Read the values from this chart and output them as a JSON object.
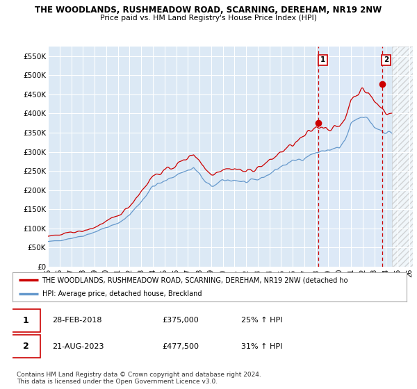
{
  "title1": "THE WOODLANDS, RUSHMEADOW ROAD, SCARNING, DEREHAM, NR19 2NW",
  "title2": "Price paid vs. HM Land Registry's House Price Index (HPI)",
  "ylim": [
    0,
    575000
  ],
  "yticks": [
    0,
    50000,
    100000,
    150000,
    200000,
    250000,
    300000,
    350000,
    400000,
    450000,
    500000,
    550000
  ],
  "ytick_labels": [
    "£0",
    "£50K",
    "£100K",
    "£150K",
    "£200K",
    "£250K",
    "£300K",
    "£350K",
    "£400K",
    "£450K",
    "£500K",
    "£550K"
  ],
  "bg_color": "#dce9f5",
  "bg_color_highlight": "#e8f0fa",
  "grid_color": "white",
  "red_color": "#cc0000",
  "blue_color": "#6699cc",
  "vline_color": "#cc0000",
  "marker1_x": 2018.17,
  "marker2_x": 2023.65,
  "marker1_y": 375000,
  "marker2_y": 477500,
  "hatch_start": 2024.5,
  "xlim_left": 1995.0,
  "xlim_right": 2026.3,
  "transactions": [
    {
      "id": 1,
      "date": "28-FEB-2018",
      "price": "£375,000",
      "hpi": "25% ↑ HPI"
    },
    {
      "id": 2,
      "date": "21-AUG-2023",
      "price": "£477,500",
      "hpi": "31% ↑ HPI"
    }
  ],
  "legend_red": "THE WOODLANDS, RUSHMEADOW ROAD, SCARNING, DEREHAM, NR19 2NW (detached ho",
  "legend_blue": "HPI: Average price, detached house, Breckland",
  "copyright": "Contains HM Land Registry data © Crown copyright and database right 2024.\nThis data is licensed under the Open Government Licence v3.0."
}
